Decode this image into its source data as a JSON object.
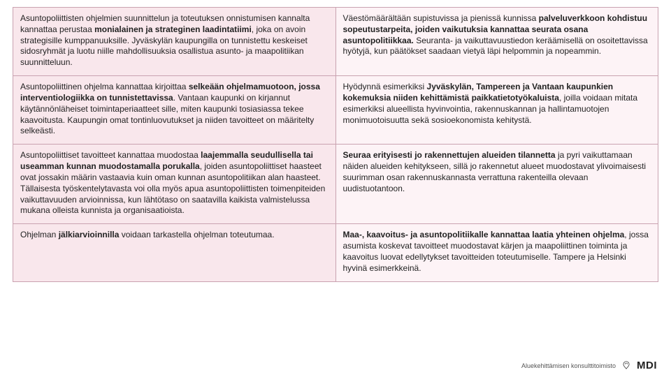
{
  "colors": {
    "left_bg": "#f9e7ec",
    "right_bg": "#fdf3f6",
    "border": "#c9a2b0",
    "text": "#222222",
    "footer_text": "#555555",
    "page_bg": "#ffffff"
  },
  "typography": {
    "cell_fontsize_pt": 9,
    "cell_lineheight": 1.32,
    "footer_small_pt": 7,
    "footer_brand_pt": 11,
    "font_family": "Arial"
  },
  "rows": [
    {
      "left": [
        {
          "t": "Asuntopoliittisten ohjelmien suunnittelun ja toteutuksen onnistumisen kannalta kannattaa perustaa ",
          "b": false
        },
        {
          "t": "monialainen ja strateginen laadintatiimi",
          "b": true
        },
        {
          "t": ", joka on avoin strategisille kumppanuuksille. Jyväskylän kaupungilla on tunnistettu keskeiset sidosryhmät ja luotu niille mahdollisuuksia osallistua asunto- ja maapolitiikan suunnitteluun.",
          "b": false
        }
      ],
      "right": [
        {
          "t": "Väestömäärältään supistuvissa ja pienissä kunnissa ",
          "b": false
        },
        {
          "t": "palveluverkkoon kohdistuu sopeutustarpeita, joiden vaikutuksia kannattaa seurata osana asuntopolitiikkaa.",
          "b": true
        },
        {
          "t": " Seuranta- ja vaikuttavuustiedon keräämisellä on osoitettavissa hyötyjä, kun päätökset saadaan vietyä läpi helpommin ja nopeammin.",
          "b": false
        }
      ]
    },
    {
      "left": [
        {
          "t": "Asuntopoliittinen ohjelma kannattaa kirjoittaa ",
          "b": false
        },
        {
          "t": "selkeään ohjelmamuotoon, jossa interventiologiikka on tunnistettavissa",
          "b": true
        },
        {
          "t": ". Vantaan kaupunki on kirjannut käytännönläheiset toimintaperiaatteet sille, miten kaupunki tosiasiassa tekee kaavoitusta. Kaupungin omat tontinluovutukset ja niiden tavoitteet on määritelty selkeästi.",
          "b": false
        }
      ],
      "right": [
        {
          "t": "Hyödynnä esimerkiksi ",
          "b": false
        },
        {
          "t": "Jyväskylän, Tampereen ja Vantaan kaupunkien kokemuksia niiden kehittämistä paikkatietotyökaluista",
          "b": true
        },
        {
          "t": ", joilla voidaan mitata esimerkiksi alueellista hyvinvointia, rakennuskannan ja hallintamuotojen monimuotoisuutta sekä sosioekonomista kehitystä.",
          "b": false
        }
      ]
    },
    {
      "left": [
        {
          "t": "Asuntopoliittiset tavoitteet kannattaa muodostaa ",
          "b": false
        },
        {
          "t": "laajemmalla seudullisella tai useamman kunnan muodostamalla porukalla",
          "b": true
        },
        {
          "t": ", joiden asuntopoliittiset haasteet ovat jossakin määrin vastaavia kuin oman kunnan asuntopolitiikan alan haasteet. Tällaisesta työskentelytavasta voi olla myös apua asuntopoliittisten toimenpiteiden vaikuttavuuden arvioinnissa, kun lähtötaso on saatavilla kaikista valmistelussa mukana olleista kunnista ja organisaatioista.",
          "b": false
        }
      ],
      "right": [
        {
          "t": "Seuraa erityisesti jo rakennettujen alueiden tilannetta",
          "b": true
        },
        {
          "t": " ja pyri vaikuttamaan näiden alueiden kehitykseen, sillä jo rakennetut alueet muodostavat ylivoimaisesti suurimman osan rakennuskannasta verrattuna rakenteilla olevaan uudistuotantoon.",
          "b": false
        }
      ]
    },
    {
      "left": [
        {
          "t": "Ohjelman ",
          "b": false
        },
        {
          "t": "jälkiarvioinnilla",
          "b": true
        },
        {
          "t": " voidaan tarkastella ohjelman toteutumaa.",
          "b": false
        }
      ],
      "right": [
        {
          "t": "Maa-, kaavoitus- ja asuntopolitiikalle kannattaa laatia yhteinen ohjelma",
          "b": true
        },
        {
          "t": ", jossa asumista koskevat tavoitteet muodostavat kärjen ja maapoliittinen toiminta ja kaavoitus luovat edellytykset tavoitteiden toteutumiselle. Tampere ja Helsinki hyvinä esimerkkeinä.",
          "b": false
        }
      ]
    }
  ],
  "footer": {
    "small_text": "Aluekehittämisen konsulttitoimisto",
    "brand": "MDI",
    "icon_color": "#3a3a3a"
  }
}
